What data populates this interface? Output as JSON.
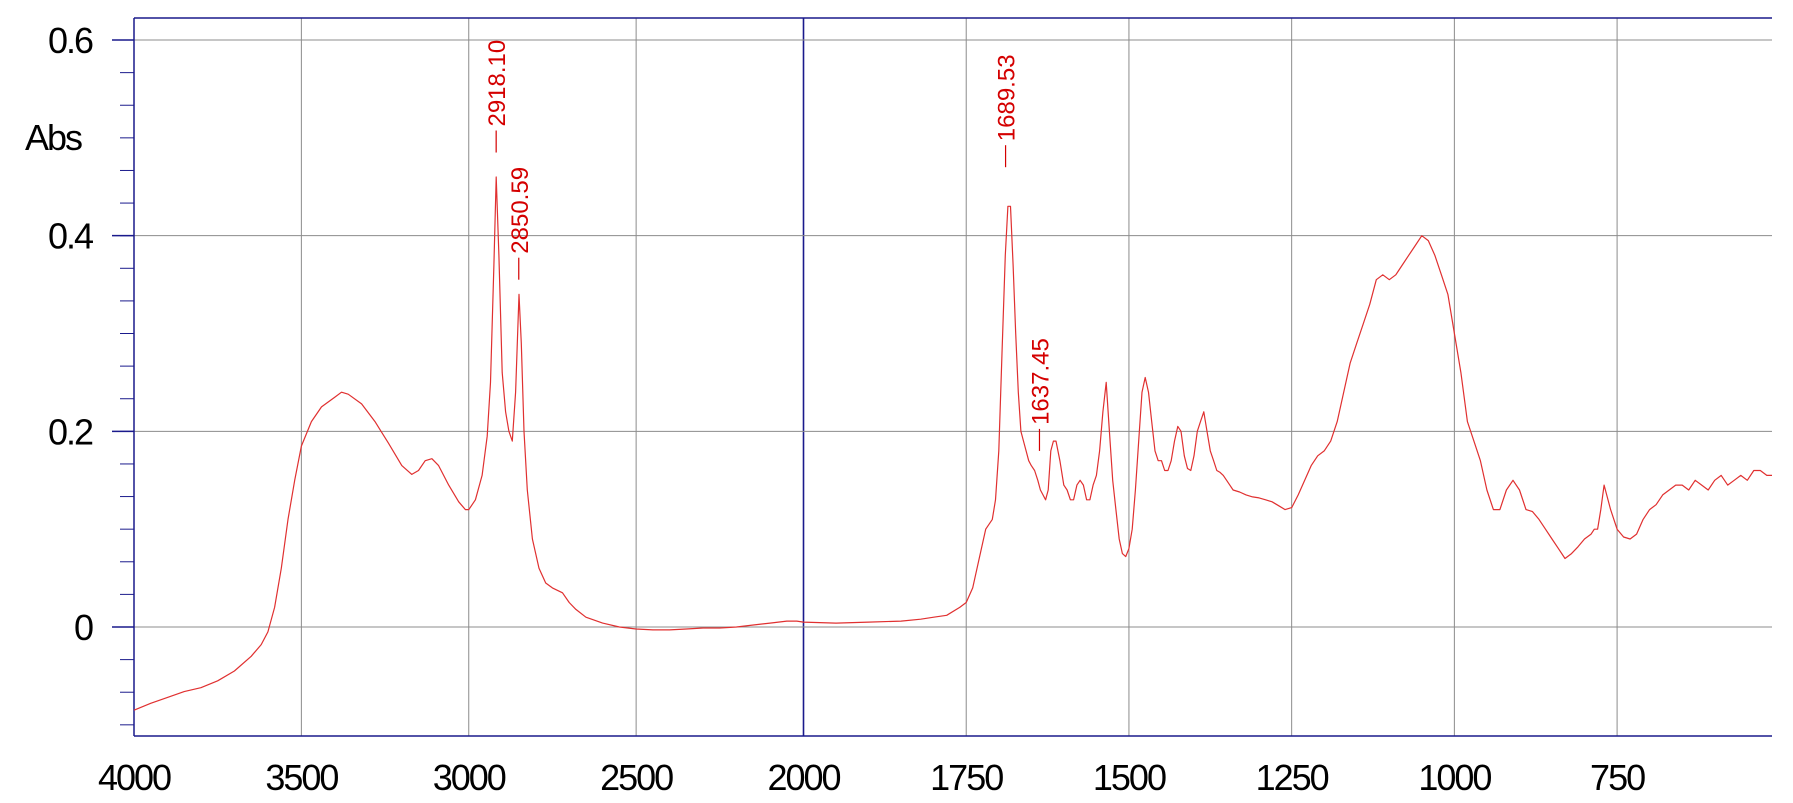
{
  "chart_data": {
    "type": "line",
    "title": "",
    "xlabel": "",
    "ylabel": "Abs",
    "x_reversed": true,
    "xlim": [
      4000,
      512
    ],
    "ylim": [
      -0.11,
      0.62
    ],
    "grid": true,
    "x_scale": "piecewise-linear: 4000-2000 compressed (2x), 2000-512 expanded",
    "x_ticks": [
      4000,
      3500,
      3000,
      2500,
      2000,
      1750,
      1500,
      1250,
      1000,
      750
    ],
    "x_tick_labels": [
      "4000",
      "3500",
      "3000",
      "2500",
      "2000",
      "1750",
      "1500",
      "1250",
      "1000",
      "750"
    ],
    "y_ticks": [
      0,
      0.2,
      0.4,
      0.6
    ],
    "y_tick_labels": [
      "0",
      "0.2",
      "0.4",
      "0.6"
    ],
    "colors": {
      "spectrum": "#e03030",
      "peak_label": "#d40000",
      "frame": "#1a1a8c",
      "grid": "#8c8c8c"
    },
    "peak_labels": [
      {
        "x": 2918.1,
        "y": 0.485,
        "label": "2918.10"
      },
      {
        "x": 2850.59,
        "y": 0.355,
        "label": "2850.59"
      },
      {
        "x": 1689.53,
        "y": 0.47,
        "label": "1689.53"
      },
      {
        "x": 1637.45,
        "y": 0.18,
        "label": "1637.45"
      }
    ],
    "series": [
      {
        "x": [
          4000,
          3950,
          3900,
          3850,
          3800,
          3750,
          3700,
          3650,
          3620,
          3600,
          3580,
          3560,
          3540,
          3520,
          3500,
          3470,
          3440,
          3400,
          3380,
          3360,
          3320,
          3280,
          3240,
          3200,
          3170,
          3150,
          3130,
          3110,
          3090,
          3060,
          3030,
          3010,
          3000,
          2980,
          2960,
          2945,
          2935,
          2925,
          2918,
          2910,
          2900,
          2890,
          2880,
          2870,
          2860,
          2850,
          2843,
          2835,
          2825,
          2810,
          2790,
          2770,
          2750,
          2720,
          2700,
          2680,
          2650,
          2600,
          2550,
          2500,
          2450,
          2400,
          2350,
          2300,
          2250,
          2200,
          2150,
          2100,
          2050,
          2020,
          2000,
          1950,
          1900,
          1850,
          1820,
          1800,
          1780,
          1760,
          1750,
          1740,
          1730,
          1720,
          1715,
          1710,
          1705,
          1700,
          1695,
          1690,
          1686,
          1682,
          1678,
          1674,
          1670,
          1666,
          1662,
          1658,
          1654,
          1650,
          1645,
          1640,
          1636,
          1632,
          1628,
          1624,
          1620,
          1616,
          1612,
          1606,
          1600,
          1595,
          1590,
          1585,
          1580,
          1575,
          1570,
          1565,
          1560,
          1555,
          1550,
          1545,
          1540,
          1535,
          1530,
          1525,
          1520,
          1515,
          1510,
          1505,
          1500,
          1495,
          1490,
          1485,
          1480,
          1475,
          1470,
          1465,
          1460,
          1455,
          1450,
          1445,
          1440,
          1435,
          1430,
          1425,
          1420,
          1415,
          1410,
          1405,
          1400,
          1395,
          1390,
          1385,
          1380,
          1375,
          1370,
          1365,
          1360,
          1355,
          1350,
          1345,
          1340,
          1330,
          1320,
          1310,
          1300,
          1290,
          1280,
          1270,
          1260,
          1250,
          1240,
          1230,
          1220,
          1210,
          1200,
          1190,
          1180,
          1170,
          1160,
          1150,
          1140,
          1130,
          1120,
          1110,
          1100,
          1090,
          1080,
          1070,
          1060,
          1050,
          1040,
          1030,
          1020,
          1010,
          1000,
          990,
          980,
          970,
          960,
          950,
          940,
          930,
          920,
          910,
          900,
          890,
          880,
          870,
          860,
          850,
          840,
          830,
          820,
          810,
          800,
          790,
          785,
          780,
          775,
          770,
          760,
          750,
          740,
          730,
          720,
          710,
          700,
          690,
          680,
          670,
          660,
          650,
          640,
          630,
          620,
          610,
          600,
          590,
          580,
          570,
          560,
          550,
          540,
          530,
          520,
          512
        ],
        "y": [
          -0.085,
          -0.078,
          -0.072,
          -0.066,
          -0.062,
          -0.055,
          -0.045,
          -0.03,
          -0.018,
          -0.005,
          0.02,
          0.06,
          0.11,
          0.15,
          0.185,
          0.21,
          0.225,
          0.235,
          0.24,
          0.238,
          0.228,
          0.21,
          0.188,
          0.165,
          0.156,
          0.16,
          0.17,
          0.172,
          0.165,
          0.145,
          0.128,
          0.12,
          0.12,
          0.13,
          0.155,
          0.195,
          0.25,
          0.37,
          0.46,
          0.38,
          0.26,
          0.22,
          0.2,
          0.19,
          0.24,
          0.34,
          0.29,
          0.2,
          0.14,
          0.09,
          0.06,
          0.045,
          0.04,
          0.035,
          0.025,
          0.018,
          0.01,
          0.004,
          0.0,
          -0.002,
          -0.003,
          -0.003,
          -0.002,
          -0.001,
          -0.001,
          0.0,
          0.002,
          0.004,
          0.006,
          0.006,
          0.005,
          0.004,
          0.005,
          0.006,
          0.008,
          0.01,
          0.012,
          0.02,
          0.025,
          0.04,
          0.07,
          0.1,
          0.105,
          0.11,
          0.13,
          0.18,
          0.28,
          0.38,
          0.43,
          0.43,
          0.37,
          0.3,
          0.24,
          0.2,
          0.19,
          0.18,
          0.17,
          0.165,
          0.16,
          0.15,
          0.14,
          0.135,
          0.13,
          0.14,
          0.18,
          0.19,
          0.19,
          0.17,
          0.145,
          0.14,
          0.13,
          0.13,
          0.145,
          0.15,
          0.145,
          0.13,
          0.13,
          0.145,
          0.155,
          0.18,
          0.22,
          0.25,
          0.2,
          0.15,
          0.12,
          0.09,
          0.075,
          0.072,
          0.08,
          0.1,
          0.14,
          0.19,
          0.24,
          0.255,
          0.24,
          0.21,
          0.18,
          0.17,
          0.17,
          0.16,
          0.16,
          0.17,
          0.19,
          0.205,
          0.2,
          0.175,
          0.162,
          0.16,
          0.175,
          0.2,
          0.21,
          0.22,
          0.2,
          0.18,
          0.17,
          0.16,
          0.158,
          0.155,
          0.15,
          0.145,
          0.14,
          0.138,
          0.135,
          0.133,
          0.132,
          0.13,
          0.128,
          0.124,
          0.12,
          0.122,
          0.135,
          0.15,
          0.165,
          0.175,
          0.18,
          0.19,
          0.21,
          0.24,
          0.27,
          0.29,
          0.31,
          0.33,
          0.355,
          0.36,
          0.355,
          0.36,
          0.37,
          0.38,
          0.39,
          0.4,
          0.395,
          0.38,
          0.36,
          0.34,
          0.3,
          0.26,
          0.21,
          0.19,
          0.17,
          0.14,
          0.12,
          0.12,
          0.14,
          0.15,
          0.14,
          0.12,
          0.118,
          0.11,
          0.1,
          0.09,
          0.08,
          0.07,
          0.075,
          0.082,
          0.09,
          0.095,
          0.1,
          0.1,
          0.12,
          0.145,
          0.12,
          0.1,
          0.092,
          0.09,
          0.095,
          0.11,
          0.12,
          0.125,
          0.135,
          0.14,
          0.145,
          0.145,
          0.14,
          0.15,
          0.145,
          0.14,
          0.15,
          0.155,
          0.145,
          0.15,
          0.155,
          0.15,
          0.16,
          0.16,
          0.155,
          0.155
        ]
      }
    ]
  }
}
